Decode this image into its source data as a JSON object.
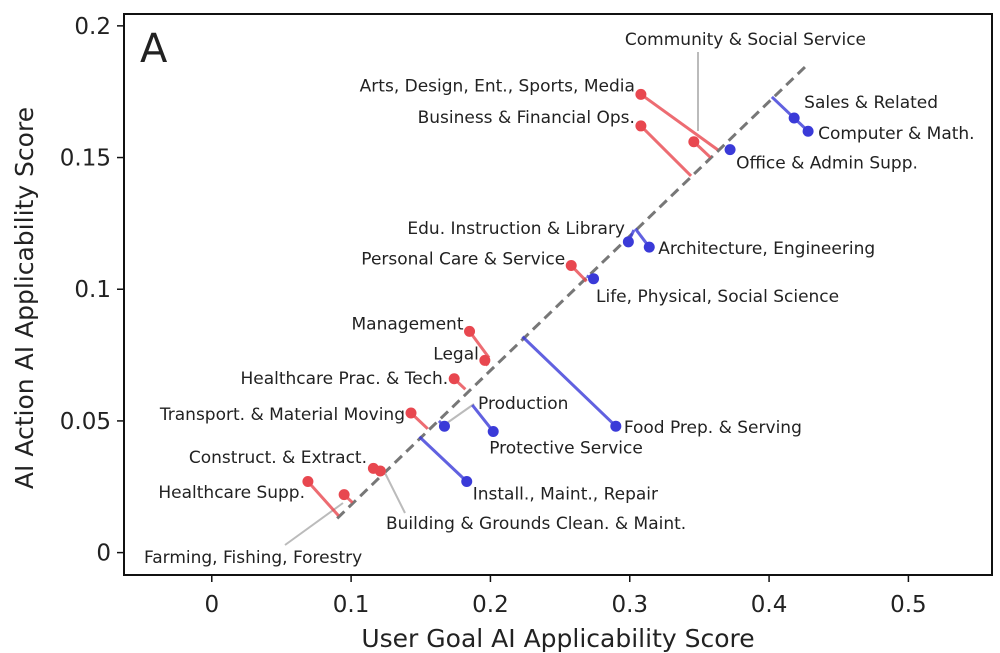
{
  "chart_data": {
    "type": "scatter",
    "panel_label": "A",
    "xlabel": "User Goal AI Applicability Score",
    "ylabel": "AI Action AI Applicability Score",
    "xlim": [
      -0.063,
      0.56
    ],
    "ylim": [
      -0.0085,
      0.2045
    ],
    "xticks": [
      0,
      0.1,
      0.2,
      0.3,
      0.4,
      0.5
    ],
    "xtick_labels": [
      "0",
      "0.1",
      "0.2",
      "0.3",
      "0.4",
      "0.5"
    ],
    "yticks": [
      0,
      0.05,
      0.1,
      0.15,
      0.2
    ],
    "ytick_labels": [
      "0",
      "0.05",
      "0.1",
      "0.15",
      "0.2"
    ],
    "diagonal": {
      "from": [
        0.09,
        0.013
      ],
      "to": [
        0.427,
        0.185
      ],
      "style": "dashed",
      "color": "#777777"
    },
    "colors": {
      "above": "#e8474f",
      "below": "#3a3ad8",
      "connector": "#bbbbbb"
    },
    "points": [
      {
        "label": "Arts, Design, Ent., Sports, Media",
        "x": 0.308,
        "y": 0.174,
        "proj": [
          0.363,
          0.153
        ],
        "group": "above"
      },
      {
        "label": "Community & Social Service",
        "x": 0.346,
        "y": 0.156,
        "proj": [
          0.358,
          0.15
        ],
        "group": "above"
      },
      {
        "label": "Business & Financial Ops.",
        "x": 0.308,
        "y": 0.162,
        "proj": [
          0.344,
          0.143
        ],
        "group": "above"
      },
      {
        "label": "Sales & Related",
        "x": 0.418,
        "y": 0.165,
        "proj": [
          0.402,
          0.173
        ],
        "group": "below"
      },
      {
        "label": "Computer & Math.",
        "x": 0.428,
        "y": 0.16,
        "proj": [
          0.416,
          0.166
        ],
        "group": "below"
      },
      {
        "label": "Office & Admin Supp.",
        "x": 0.372,
        "y": 0.153,
        "proj": [
          0.369,
          0.154
        ],
        "group": "below"
      },
      {
        "label": "Edu. Instruction & Library",
        "x": 0.299,
        "y": 0.118,
        "proj": [
          0.303,
          0.1225
        ],
        "group": "below"
      },
      {
        "label": "Architecture, Engineering",
        "x": 0.314,
        "y": 0.116,
        "proj": [
          0.304,
          0.123
        ],
        "group": "below"
      },
      {
        "label": "Personal Care & Service",
        "x": 0.258,
        "y": 0.109,
        "proj": [
          0.269,
          0.103
        ],
        "group": "above"
      },
      {
        "label": "Life, Physical, Social Science",
        "x": 0.274,
        "y": 0.104,
        "proj": [
          0.269,
          0.105
        ],
        "group": "below"
      },
      {
        "label": "Management",
        "x": 0.185,
        "y": 0.084,
        "proj": [
          0.199,
          0.074
        ],
        "group": "above"
      },
      {
        "label": "Legal",
        "x": 0.196,
        "y": 0.073,
        "proj": [
          0.198,
          0.071
        ],
        "group": "above"
      },
      {
        "label": "Healthcare Prac. & Tech.",
        "x": 0.174,
        "y": 0.066,
        "proj": [
          0.182,
          0.062
        ],
        "group": "above"
      },
      {
        "label": "Transport. & Material Moving",
        "x": 0.143,
        "y": 0.053,
        "proj": [
          0.155,
          0.047
        ],
        "group": "above"
      },
      {
        "label": "Production",
        "x": 0.167,
        "y": 0.048,
        "proj": [
          0.163,
          0.05
        ],
        "group": "below"
      },
      {
        "label": "Food Prep. & Serving",
        "x": 0.29,
        "y": 0.048,
        "proj": [
          0.223,
          0.082
        ],
        "group": "below"
      },
      {
        "label": "Protective Service",
        "x": 0.202,
        "y": 0.046,
        "proj": [
          0.187,
          0.056
        ],
        "group": "below"
      },
      {
        "label": "Construct. & Extract.",
        "x": 0.116,
        "y": 0.032,
        "proj": [
          0.122,
          0.03
        ],
        "group": "above"
      },
      {
        "label": "Building & Grounds Clean. & Maint.",
        "x": 0.121,
        "y": 0.031,
        "proj": [
          0.124,
          0.03
        ],
        "group": "above"
      },
      {
        "label": "Install., Maint., Repair",
        "x": 0.183,
        "y": 0.027,
        "proj": [
          0.149,
          0.044
        ],
        "group": "below"
      },
      {
        "label": "Healthcare Supp.",
        "x": 0.069,
        "y": 0.027,
        "proj": [
          0.091,
          0.014
        ],
        "group": "above"
      },
      {
        "label": "Farming, Fishing, Forestry",
        "x": 0.095,
        "y": 0.022,
        "proj": [
          0.101,
          0.019
        ],
        "group": "above"
      }
    ]
  }
}
